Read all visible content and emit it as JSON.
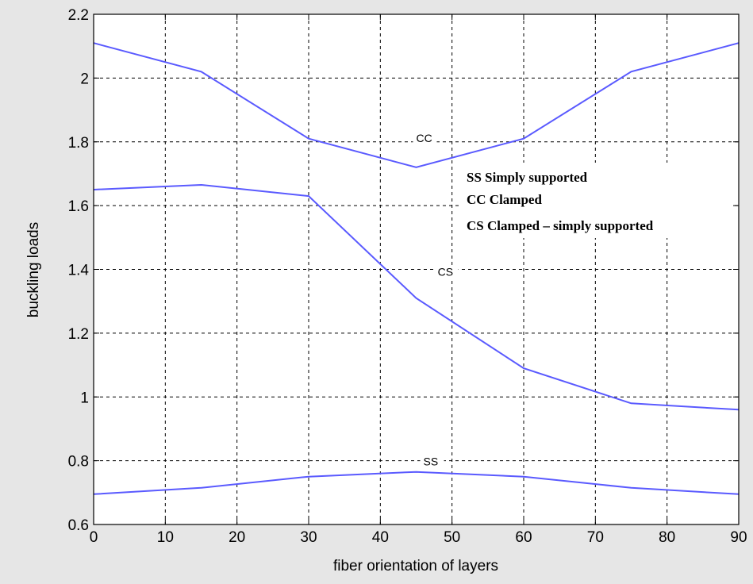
{
  "chart_data": {
    "type": "line",
    "title": "",
    "xlabel": "fiber orientation of layers",
    "ylabel": "buckling loads",
    "xlim": [
      0,
      90
    ],
    "ylim": [
      0.6,
      2.2
    ],
    "xticks": [
      0,
      10,
      20,
      30,
      40,
      50,
      60,
      70,
      80,
      90
    ],
    "yticks": [
      0.6,
      0.8,
      1,
      1.2,
      1.4,
      1.6,
      1.8,
      2,
      2.2
    ],
    "ytick_labels": [
      "0.6",
      "0.8",
      "1",
      "1.2",
      "1.4",
      "1.6",
      "1.8",
      "2",
      "2.2"
    ],
    "grid": true,
    "line_color": "#5a5aff",
    "series": [
      {
        "name": "CC",
        "x": [
          0,
          15,
          30,
          45,
          60,
          75,
          90
        ],
        "values": [
          2.11,
          2.02,
          1.81,
          1.72,
          1.81,
          2.02,
          2.11
        ],
        "label": "CC",
        "label_at": [
          45,
          1.8
        ]
      },
      {
        "name": "CS",
        "x": [
          0,
          15,
          30,
          45,
          60,
          75,
          90
        ],
        "values": [
          1.65,
          1.665,
          1.63,
          1.31,
          1.09,
          0.98,
          0.96
        ],
        "label": "CS",
        "label_at": [
          48,
          1.38
        ]
      },
      {
        "name": "SS",
        "x": [
          0,
          15,
          30,
          45,
          60,
          75,
          90
        ],
        "values": [
          0.695,
          0.715,
          0.75,
          0.765,
          0.75,
          0.715,
          0.695
        ],
        "label": "SS",
        "label_at": [
          46,
          0.785
        ]
      }
    ],
    "annotations": [
      "SS  Simply supported",
      "CC Clamped",
      "CS  Clamped – simply supported"
    ]
  }
}
